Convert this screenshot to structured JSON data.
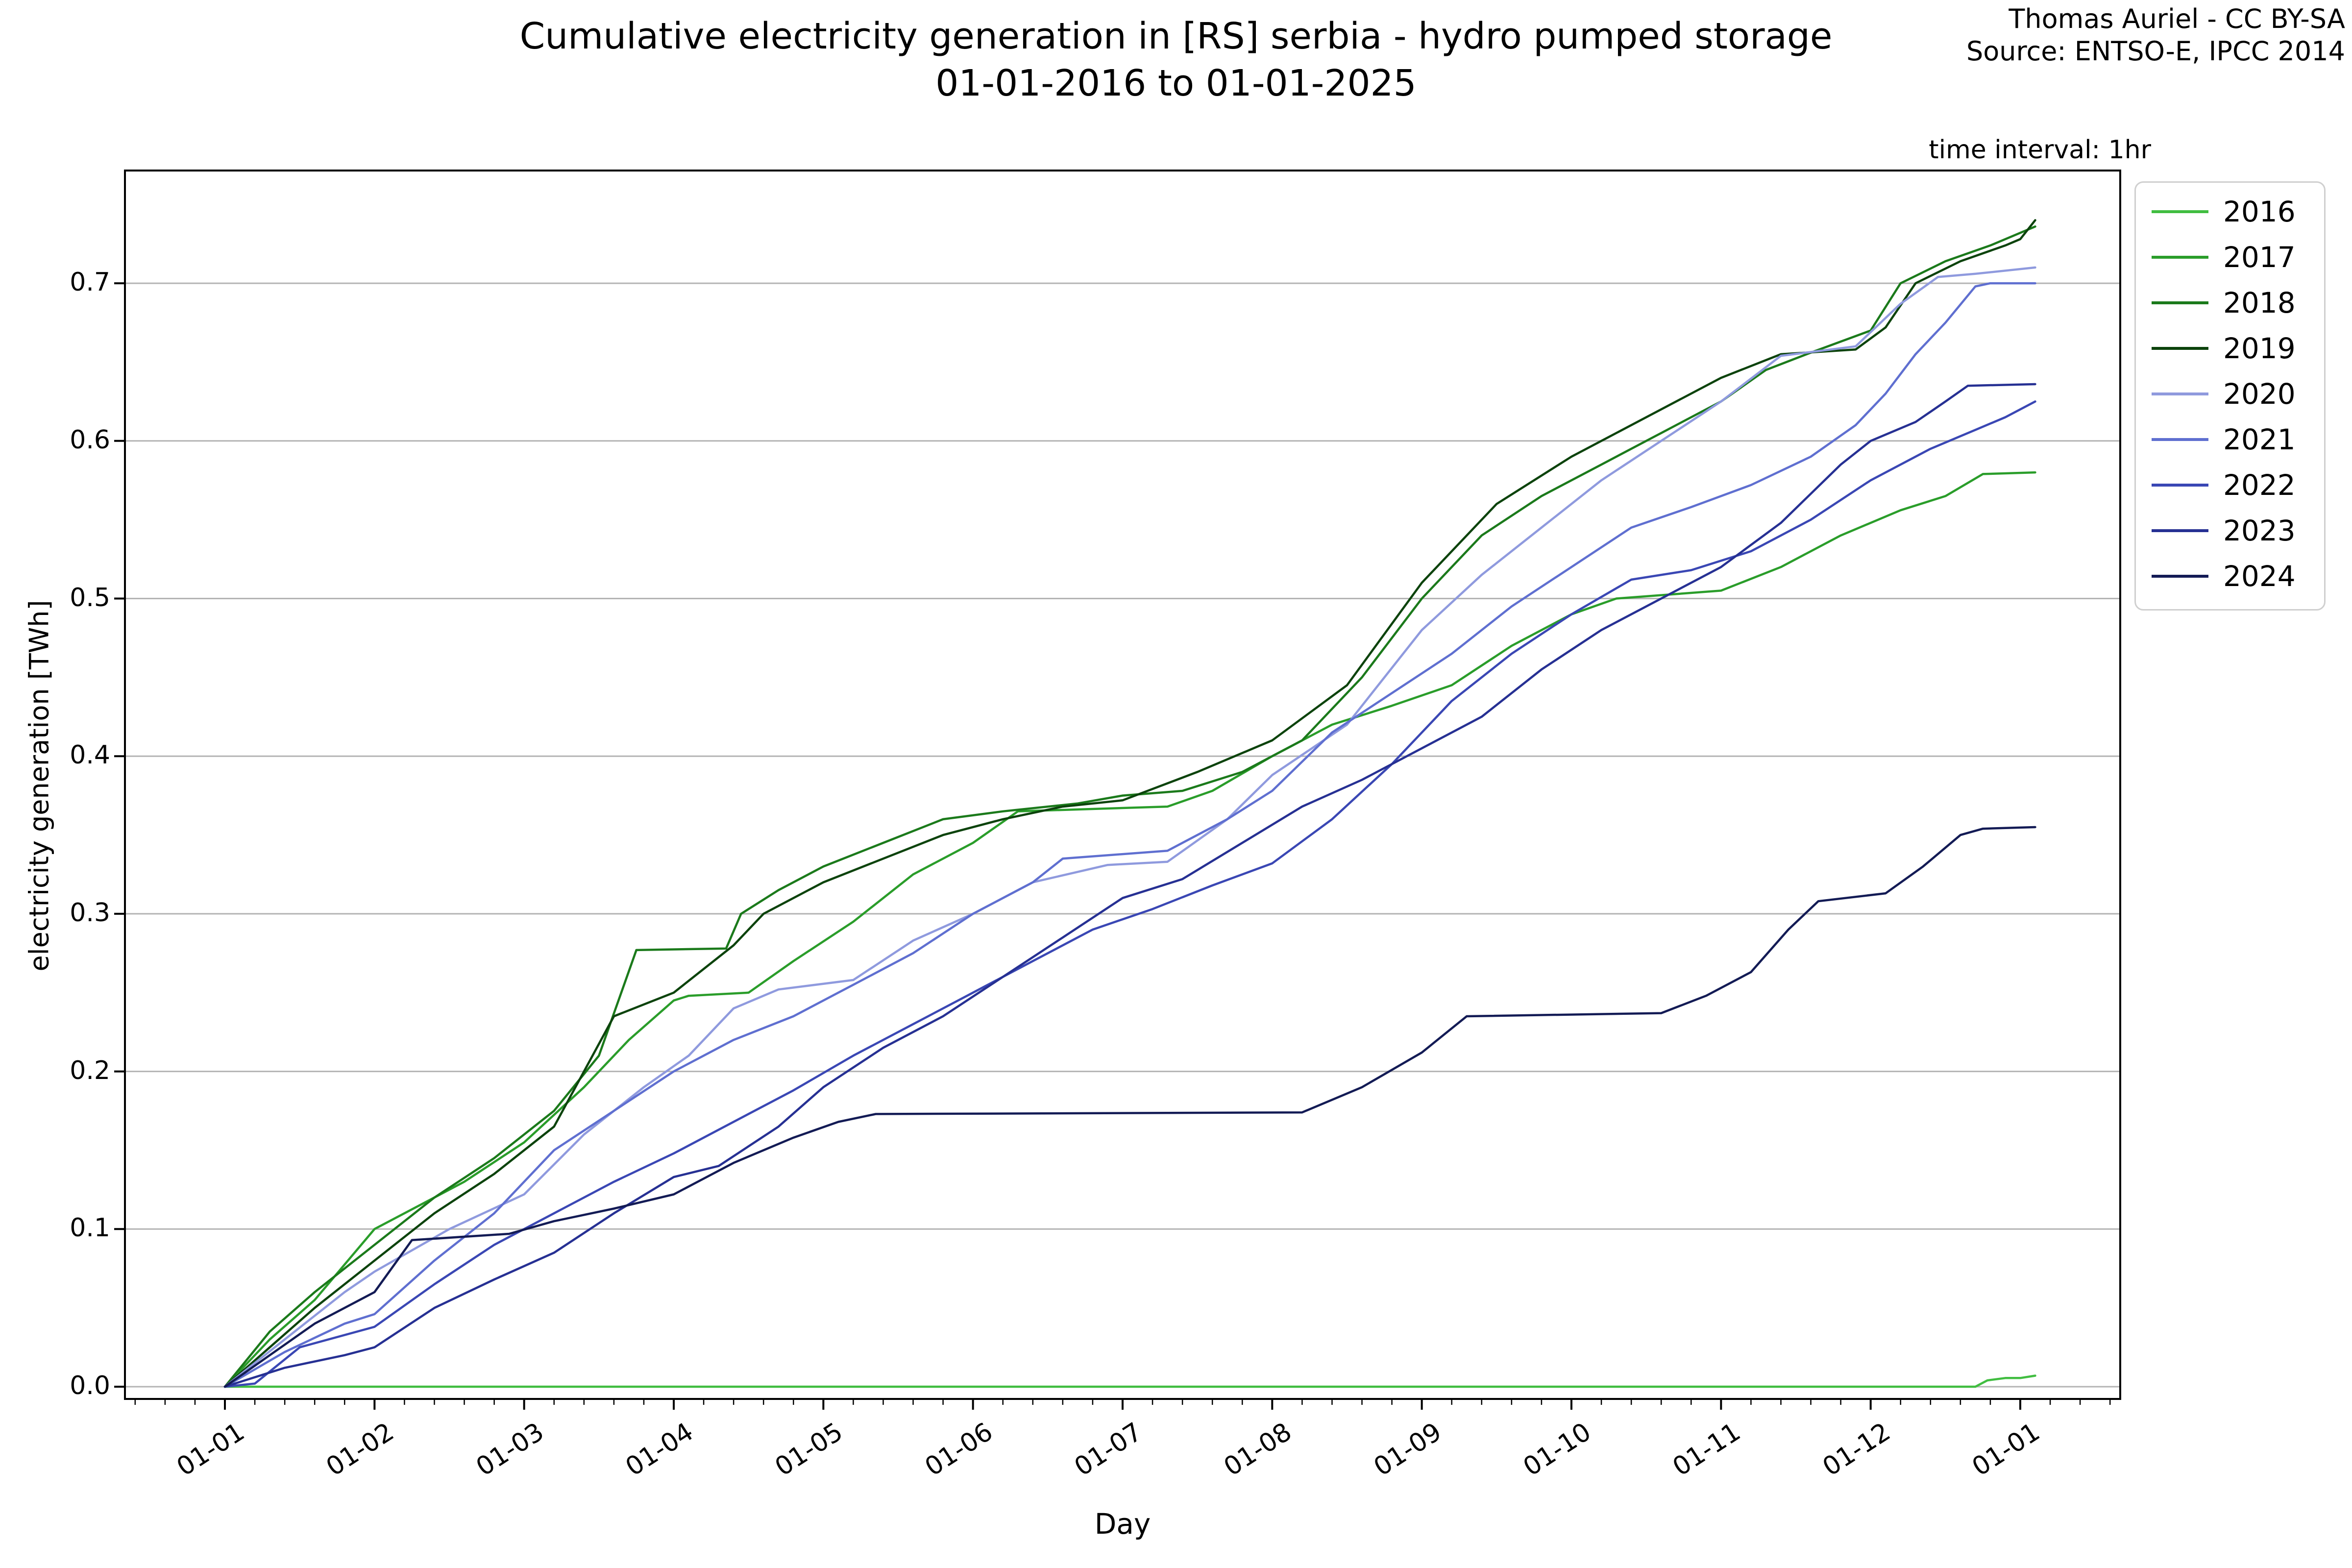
{
  "header": {
    "title_line1": "Cumulative electricity generation in [RS] serbia - hydro pumped storage",
    "title_line2": "01-01-2016 to 01-01-2025",
    "attribution_line1": "Thomas Auriel - CC BY-SA",
    "attribution_line2": "Source: ENTSO-E, IPCC 2014",
    "time_interval_label": "time interval: 1hr"
  },
  "axes": {
    "xlabel": "Day",
    "ylabel": "electricity generation [TWh]",
    "x_tick_labels": [
      "01-01",
      "01-02",
      "01-03",
      "01-04",
      "01-05",
      "01-06",
      "01-07",
      "01-08",
      "01-09",
      "01-10",
      "01-11",
      "01-12",
      "01-01"
    ],
    "y_tick_labels": [
      "0.0",
      "0.1",
      "0.2",
      "0.3",
      "0.4",
      "0.5",
      "0.6",
      "0.7"
    ]
  },
  "legend": {
    "position": "outside-upper-right",
    "entries": [
      "2016",
      "2017",
      "2018",
      "2019",
      "2020",
      "2021",
      "2022",
      "2023",
      "2024"
    ]
  },
  "colors": {
    "grid": "#b4b4b4",
    "spine": "#000000",
    "text": "#000000"
  },
  "chart_data": {
    "type": "line",
    "title": "Cumulative electricity generation in [RS] serbia - hydro pumped storage 01-01-2016 to 01-01-2025",
    "xlabel": "Day",
    "ylabel": "electricity generation [TWh]",
    "x_unit": "months elapsed since Jan 1 (0 = 01-01, 12 = following 01-01)",
    "y_unit": "TWh",
    "ylim": [
      0,
      0.74
    ],
    "xlim": [
      0,
      12
    ],
    "grid": "horizontal-only",
    "legend_position": "outside-upper-right",
    "x_tick_months": [
      0,
      1,
      2,
      3,
      4,
      5,
      6,
      7,
      8,
      9,
      10,
      11,
      12
    ],
    "x_tick_labels": [
      "01-01",
      "01-02",
      "01-03",
      "01-04",
      "01-05",
      "01-06",
      "01-07",
      "01-08",
      "01-09",
      "01-10",
      "01-11",
      "01-12",
      "01-01"
    ],
    "y_tick_values": [
      0.0,
      0.1,
      0.2,
      0.3,
      0.4,
      0.5,
      0.6,
      0.7
    ],
    "series": [
      {
        "name": "2016",
        "color": "#41bd41",
        "end_value": 0.007,
        "points": [
          [
            0,
            0
          ],
          [
            11.7,
            0
          ],
          [
            11.78,
            0.004
          ],
          [
            11.9,
            0.0055
          ],
          [
            12.0,
            0.0055
          ],
          [
            12.1,
            0.007
          ]
        ]
      },
      {
        "name": "2017",
        "color": "#2a9d2a",
        "end_value": 0.58,
        "points": [
          [
            0,
            0
          ],
          [
            0.3,
            0.03
          ],
          [
            0.6,
            0.055
          ],
          [
            1,
            0.1
          ],
          [
            1.3,
            0.115
          ],
          [
            1.6,
            0.13
          ],
          [
            2,
            0.155
          ],
          [
            2.4,
            0.19
          ],
          [
            2.7,
            0.22
          ],
          [
            3,
            0.245
          ],
          [
            3.1,
            0.248
          ],
          [
            3.5,
            0.25
          ],
          [
            3.8,
            0.27
          ],
          [
            4.2,
            0.295
          ],
          [
            4.6,
            0.325
          ],
          [
            5,
            0.345
          ],
          [
            5.3,
            0.365
          ],
          [
            6.3,
            0.368
          ],
          [
            6.6,
            0.378
          ],
          [
            7,
            0.4
          ],
          [
            7.4,
            0.42
          ],
          [
            7.8,
            0.432
          ],
          [
            8.2,
            0.445
          ],
          [
            8.6,
            0.47
          ],
          [
            9,
            0.49
          ],
          [
            9.3,
            0.5
          ],
          [
            10,
            0.505
          ],
          [
            10.4,
            0.52
          ],
          [
            10.8,
            0.54
          ],
          [
            11.2,
            0.556
          ],
          [
            11.5,
            0.565
          ],
          [
            11.75,
            0.579
          ],
          [
            12.1,
            0.58
          ]
        ]
      },
      {
        "name": "2018",
        "color": "#1b7a1b",
        "end_value": 0.736,
        "points": [
          [
            0,
            0
          ],
          [
            0.3,
            0.035
          ],
          [
            0.6,
            0.06
          ],
          [
            1,
            0.09
          ],
          [
            1.4,
            0.12
          ],
          [
            1.8,
            0.145
          ],
          [
            2.2,
            0.175
          ],
          [
            2.5,
            0.21
          ],
          [
            2.75,
            0.277
          ],
          [
            3.35,
            0.278
          ],
          [
            3.45,
            0.3
          ],
          [
            3.7,
            0.315
          ],
          [
            4,
            0.33
          ],
          [
            4.4,
            0.345
          ],
          [
            4.8,
            0.36
          ],
          [
            5.2,
            0.365
          ],
          [
            5.7,
            0.37
          ],
          [
            6,
            0.375
          ],
          [
            6.4,
            0.378
          ],
          [
            6.8,
            0.39
          ],
          [
            7.2,
            0.41
          ],
          [
            7.6,
            0.45
          ],
          [
            8,
            0.5
          ],
          [
            8.4,
            0.54
          ],
          [
            8.8,
            0.565
          ],
          [
            9.2,
            0.585
          ],
          [
            9.6,
            0.605
          ],
          [
            10,
            0.625
          ],
          [
            10.3,
            0.645
          ],
          [
            10.6,
            0.656
          ],
          [
            11,
            0.67
          ],
          [
            11.2,
            0.7
          ],
          [
            11.5,
            0.714
          ],
          [
            11.8,
            0.724
          ],
          [
            12.1,
            0.736
          ]
        ]
      },
      {
        "name": "2019",
        "color": "#0c430c",
        "end_value": 0.74,
        "points": [
          [
            0,
            0
          ],
          [
            0.3,
            0.025
          ],
          [
            0.6,
            0.05
          ],
          [
            1,
            0.08
          ],
          [
            1.4,
            0.11
          ],
          [
            1.8,
            0.135
          ],
          [
            2.2,
            0.165
          ],
          [
            2.6,
            0.235
          ],
          [
            3,
            0.25
          ],
          [
            3.4,
            0.28
          ],
          [
            3.6,
            0.3
          ],
          [
            4,
            0.32
          ],
          [
            4.4,
            0.335
          ],
          [
            4.8,
            0.35
          ],
          [
            5.2,
            0.36
          ],
          [
            5.6,
            0.368
          ],
          [
            6,
            0.372
          ],
          [
            6.5,
            0.39
          ],
          [
            7,
            0.41
          ],
          [
            7.5,
            0.445
          ],
          [
            8,
            0.51
          ],
          [
            8.5,
            0.56
          ],
          [
            9,
            0.59
          ],
          [
            9.5,
            0.615
          ],
          [
            10,
            0.64
          ],
          [
            10.4,
            0.655
          ],
          [
            10.9,
            0.658
          ],
          [
            11.1,
            0.672
          ],
          [
            11.3,
            0.7
          ],
          [
            11.6,
            0.714
          ],
          [
            11.9,
            0.724
          ],
          [
            12,
            0.728
          ],
          [
            12.1,
            0.74
          ]
        ]
      },
      {
        "name": "2020",
        "color": "#8f9ade",
        "end_value": 0.71,
        "points": [
          [
            0,
            0
          ],
          [
            0.4,
            0.03
          ],
          [
            0.8,
            0.06
          ],
          [
            1,
            0.073
          ],
          [
            1.5,
            0.1
          ],
          [
            2,
            0.122
          ],
          [
            2.4,
            0.16
          ],
          [
            2.8,
            0.19
          ],
          [
            3.1,
            0.21
          ],
          [
            3.4,
            0.24
          ],
          [
            3.7,
            0.252
          ],
          [
            4.2,
            0.258
          ],
          [
            4.6,
            0.283
          ],
          [
            5,
            0.3
          ],
          [
            5.4,
            0.32
          ],
          [
            5.9,
            0.331
          ],
          [
            6.3,
            0.333
          ],
          [
            6.7,
            0.36
          ],
          [
            7,
            0.388
          ],
          [
            7.5,
            0.42
          ],
          [
            8,
            0.48
          ],
          [
            8.4,
            0.515
          ],
          [
            8.8,
            0.545
          ],
          [
            9.2,
            0.575
          ],
          [
            9.6,
            0.6
          ],
          [
            10,
            0.625
          ],
          [
            10.4,
            0.654
          ],
          [
            10.9,
            0.66
          ],
          [
            11.2,
            0.687
          ],
          [
            11.45,
            0.704
          ],
          [
            11.7,
            0.706
          ],
          [
            12.1,
            0.71
          ]
        ]
      },
      {
        "name": "2021",
        "color": "#5f6fd0",
        "end_value": 0.7,
        "points": [
          [
            0,
            0
          ],
          [
            0.4,
            0.022
          ],
          [
            0.8,
            0.04
          ],
          [
            1,
            0.046
          ],
          [
            1.4,
            0.08
          ],
          [
            1.8,
            0.11
          ],
          [
            2.2,
            0.15
          ],
          [
            2.6,
            0.175
          ],
          [
            3,
            0.2
          ],
          [
            3.4,
            0.22
          ],
          [
            3.8,
            0.235
          ],
          [
            4.2,
            0.255
          ],
          [
            4.6,
            0.275
          ],
          [
            5,
            0.3
          ],
          [
            5.4,
            0.32
          ],
          [
            5.6,
            0.335
          ],
          [
            6.3,
            0.34
          ],
          [
            6.7,
            0.36
          ],
          [
            7,
            0.378
          ],
          [
            7.4,
            0.415
          ],
          [
            7.8,
            0.44
          ],
          [
            8.2,
            0.465
          ],
          [
            8.6,
            0.495
          ],
          [
            9,
            0.52
          ],
          [
            9.4,
            0.545
          ],
          [
            9.8,
            0.558
          ],
          [
            10.2,
            0.572
          ],
          [
            10.6,
            0.59
          ],
          [
            10.9,
            0.61
          ],
          [
            11.1,
            0.63
          ],
          [
            11.3,
            0.655
          ],
          [
            11.5,
            0.675
          ],
          [
            11.7,
            0.698
          ],
          [
            11.8,
            0.7
          ],
          [
            12.1,
            0.7
          ]
        ]
      },
      {
        "name": "2022",
        "color": "#3a47b4",
        "end_value": 0.625,
        "points": [
          [
            0,
            0
          ],
          [
            0.2,
            0.002
          ],
          [
            0.5,
            0.025
          ],
          [
            1,
            0.038
          ],
          [
            1.4,
            0.065
          ],
          [
            1.8,
            0.09
          ],
          [
            2.2,
            0.11
          ],
          [
            2.6,
            0.13
          ],
          [
            3,
            0.148
          ],
          [
            3.4,
            0.168
          ],
          [
            3.8,
            0.188
          ],
          [
            4.2,
            0.21
          ],
          [
            4.6,
            0.23
          ],
          [
            5,
            0.25
          ],
          [
            5.4,
            0.27
          ],
          [
            5.8,
            0.29
          ],
          [
            6.2,
            0.303
          ],
          [
            6.6,
            0.318
          ],
          [
            7,
            0.332
          ],
          [
            7.4,
            0.36
          ],
          [
            7.8,
            0.395
          ],
          [
            8.2,
            0.435
          ],
          [
            8.6,
            0.465
          ],
          [
            9,
            0.49
          ],
          [
            9.4,
            0.512
          ],
          [
            9.8,
            0.518
          ],
          [
            10.2,
            0.53
          ],
          [
            10.6,
            0.55
          ],
          [
            11,
            0.575
          ],
          [
            11.4,
            0.595
          ],
          [
            11.7,
            0.607
          ],
          [
            11.9,
            0.615
          ],
          [
            12.1,
            0.625
          ]
        ]
      },
      {
        "name": "2023",
        "color": "#263093",
        "end_value": 0.636,
        "points": [
          [
            0,
            0
          ],
          [
            0.4,
            0.012
          ],
          [
            0.8,
            0.02
          ],
          [
            1,
            0.025
          ],
          [
            1.4,
            0.05
          ],
          [
            1.8,
            0.068
          ],
          [
            2.2,
            0.085
          ],
          [
            2.6,
            0.11
          ],
          [
            3,
            0.133
          ],
          [
            3.3,
            0.14
          ],
          [
            3.7,
            0.165
          ],
          [
            4,
            0.19
          ],
          [
            4.4,
            0.215
          ],
          [
            4.8,
            0.235
          ],
          [
            5.2,
            0.26
          ],
          [
            5.6,
            0.285
          ],
          [
            6,
            0.31
          ],
          [
            6.4,
            0.322
          ],
          [
            6.8,
            0.345
          ],
          [
            7.2,
            0.368
          ],
          [
            7.6,
            0.385
          ],
          [
            8,
            0.405
          ],
          [
            8.4,
            0.425
          ],
          [
            8.8,
            0.455
          ],
          [
            9.2,
            0.48
          ],
          [
            9.6,
            0.5
          ],
          [
            10,
            0.52
          ],
          [
            10.4,
            0.548
          ],
          [
            10.8,
            0.585
          ],
          [
            11,
            0.6
          ],
          [
            11.3,
            0.612
          ],
          [
            11.5,
            0.625
          ],
          [
            11.65,
            0.635
          ],
          [
            12.1,
            0.636
          ]
        ]
      },
      {
        "name": "2024",
        "color": "#131b55",
        "end_value": 0.355,
        "points": [
          [
            0,
            0
          ],
          [
            0.3,
            0.02
          ],
          [
            0.6,
            0.04
          ],
          [
            1,
            0.06
          ],
          [
            1.25,
            0.093
          ],
          [
            1.9,
            0.097
          ],
          [
            2.2,
            0.105
          ],
          [
            2.6,
            0.113
          ],
          [
            3,
            0.122
          ],
          [
            3.4,
            0.142
          ],
          [
            3.8,
            0.158
          ],
          [
            4.1,
            0.168
          ],
          [
            4.35,
            0.173
          ],
          [
            7.2,
            0.174
          ],
          [
            7.6,
            0.19
          ],
          [
            8,
            0.212
          ],
          [
            8.3,
            0.235
          ],
          [
            9.6,
            0.237
          ],
          [
            9.9,
            0.248
          ],
          [
            10.2,
            0.263
          ],
          [
            10.45,
            0.29
          ],
          [
            10.65,
            0.308
          ],
          [
            11.1,
            0.313
          ],
          [
            11.35,
            0.33
          ],
          [
            11.6,
            0.35
          ],
          [
            11.75,
            0.354
          ],
          [
            12.1,
            0.355
          ]
        ]
      }
    ]
  }
}
